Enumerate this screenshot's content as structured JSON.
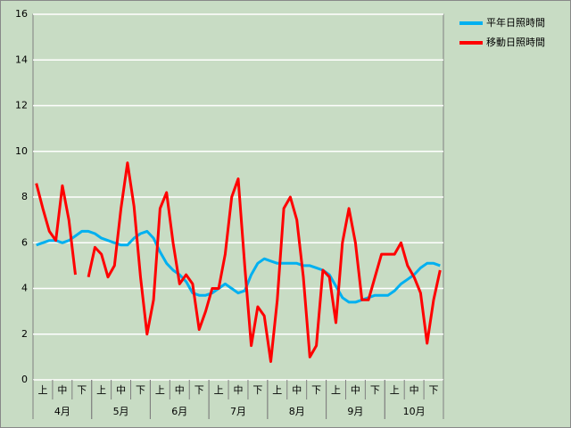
{
  "chart_data": {
    "type": "line",
    "categories": [
      null,
      "上",
      null,
      null,
      "中",
      null,
      null,
      "下",
      null,
      null,
      "上",
      null,
      null,
      "中",
      null,
      null,
      "下",
      null,
      null,
      "上",
      null,
      null,
      "中",
      null,
      null,
      "下",
      null,
      null,
      "上",
      null,
      null,
      "中",
      null,
      null,
      "下",
      null,
      null,
      "上",
      null,
      null,
      "中",
      null,
      null,
      "下",
      null,
      null,
      "上",
      null,
      null,
      "中",
      null,
      null,
      "下",
      null,
      null,
      "上",
      null,
      null,
      "中",
      null,
      null,
      "下",
      null
    ],
    "groups": [
      "4月",
      "5月",
      "6月",
      "7月",
      "8月",
      "9月",
      "10月"
    ],
    "series": [
      {
        "name": "平年日照時間",
        "color": "#00b0f0",
        "values": [
          5.9,
          6.0,
          6.1,
          6.1,
          6.0,
          6.1,
          6.3,
          6.5,
          6.5,
          6.4,
          6.2,
          6.1,
          6.0,
          5.9,
          5.9,
          6.2,
          6.4,
          6.5,
          6.2,
          5.6,
          5.1,
          4.8,
          4.6,
          4.3,
          3.8,
          3.7,
          3.7,
          3.8,
          4.0,
          4.2,
          4.0,
          3.8,
          3.9,
          4.6,
          5.1,
          5.3,
          5.2,
          5.1,
          5.1,
          5.1,
          5.1,
          5.0,
          5.0,
          4.9,
          4.8,
          4.6,
          4.1,
          3.6,
          3.4,
          3.4,
          3.5,
          3.6,
          3.7,
          3.7,
          3.7,
          3.9,
          4.2,
          4.4,
          4.6,
          4.9,
          5.1,
          5.1,
          5.0
        ]
      },
      {
        "name": "移動日照時間",
        "color": "#ff0000",
        "values": [
          8.6,
          7.5,
          6.5,
          6.1,
          8.5,
          7.0,
          4.6,
          null,
          4.5,
          5.8,
          5.5,
          4.5,
          5.0,
          7.5,
          9.5,
          7.6,
          4.5,
          2.0,
          3.5,
          7.5,
          8.2,
          6.0,
          4.2,
          4.6,
          4.2,
          2.2,
          3.0,
          4.0,
          4.0,
          5.5,
          8.0,
          8.8,
          5.0,
          1.5,
          3.2,
          2.8,
          0.8,
          3.5,
          7.5,
          8.0,
          7.0,
          4.5,
          1.0,
          1.5,
          4.8,
          4.5,
          2.5,
          6.0,
          7.5,
          6.0,
          3.5,
          3.5,
          4.5,
          5.5,
          5.5,
          5.5,
          6.0,
          5.0,
          4.5,
          3.8,
          1.6,
          3.5,
          4.8
        ]
      }
    ],
    "ylim": [
      0,
      16
    ],
    "yticks": [
      0,
      2,
      4,
      6,
      8,
      10,
      12,
      14,
      16
    ],
    "grid": true,
    "legend": "right"
  }
}
